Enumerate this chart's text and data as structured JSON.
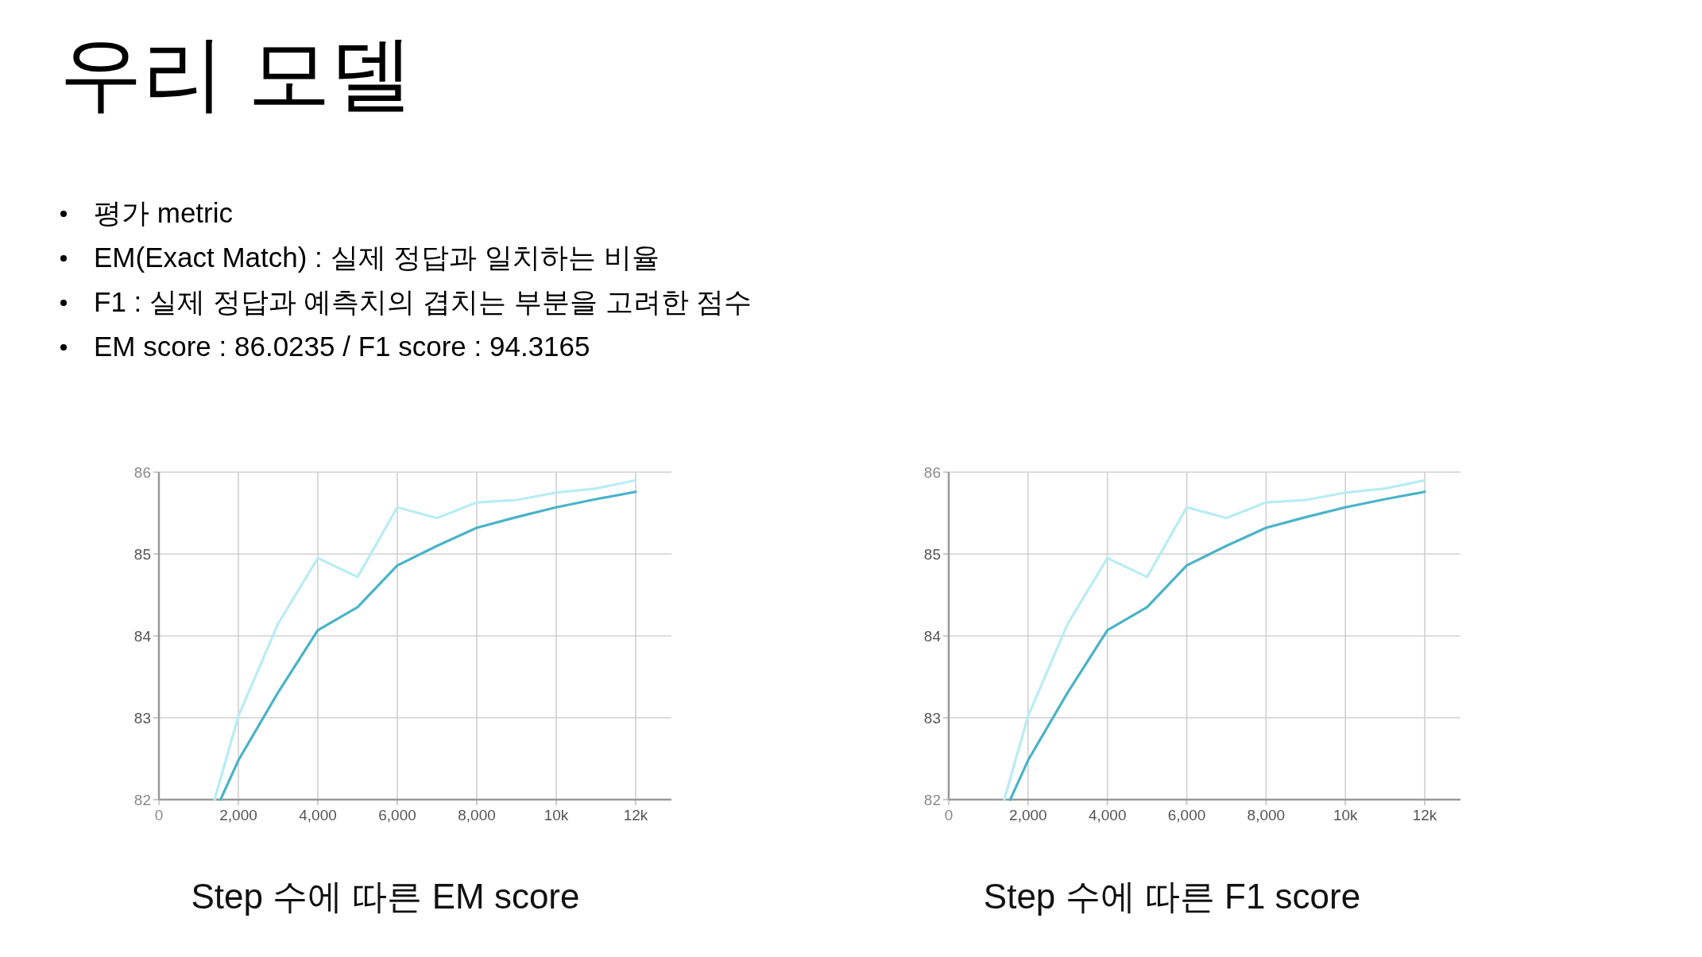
{
  "chart_data": [
    {
      "type": "line",
      "title": "Step 수에 따른 EM score",
      "annotations": [
        "우리 모델",
        "평가 metric",
        "EM(Exact Match) : 실제 정답과 일치하는 비율",
        "F1 : 실제 정답과 예측치의 겹치는 부분을 고려한 점수",
        "EM score : 86.0235 / F1 score : 94.3165"
      ],
      "series": [
        {
          "color": "#b8ecf5",
          "x": [
            1400,
            2000,
            3000,
            4000,
            5000,
            6000,
            7000,
            8000,
            9000,
            10000,
            11000,
            12000
          ],
          "values": [
            82.0,
            83.02,
            84.15,
            84.95,
            84.72,
            85.57,
            85.44,
            85.63,
            85.66,
            85.75,
            85.8,
            85.9
          ]
        },
        {
          "color": "#4ab3c8",
          "x": [
            1550,
            2000,
            3000,
            4000,
            5000,
            6000,
            7000,
            8000,
            9000,
            10000,
            11000,
            12000
          ],
          "values": [
            82.0,
            82.48,
            83.31,
            84.07,
            84.35,
            84.86,
            85.1,
            85.32,
            85.45,
            85.57,
            85.67,
            85.76
          ]
        }
      ],
      "xlim": [
        0,
        12900
      ],
      "ylim": [
        82,
        86
      ],
      "xticks": [
        0,
        {
          "value": 2000,
          "label": "2,000"
        },
        {
          "value": 4000,
          "label": "4,000"
        },
        {
          "value": 6000,
          "label": "6,000"
        },
        {
          "value": 8000,
          "label": "8,000"
        },
        {
          "value": 10000,
          "label": "10k"
        },
        {
          "value": 12000,
          "label": "12k"
        }
      ],
      "yticks": [
        82,
        83,
        84,
        85,
        86
      ],
      "grid": true
    },
    {
      "type": "line",
      "title": "Step 수에 따른 F1 score",
      "series": [
        {
          "color": "#b8ecf5",
          "x": [
            1400,
            2000,
            3000,
            4000,
            5000,
            6000,
            7000,
            8000,
            9000,
            10000,
            11000,
            12000
          ],
          "values": [
            82.0,
            83.02,
            84.15,
            84.95,
            84.72,
            85.57,
            85.44,
            85.63,
            85.66,
            85.75,
            85.8,
            85.9
          ]
        },
        {
          "color": "#4ab3c8",
          "x": [
            1550,
            2000,
            3000,
            4000,
            5000,
            6000,
            7000,
            8000,
            9000,
            10000,
            11000,
            12000
          ],
          "values": [
            82.0,
            82.48,
            83.31,
            84.07,
            84.35,
            84.86,
            85.1,
            85.32,
            85.45,
            85.57,
            85.67,
            85.76
          ]
        }
      ],
      "xlim": [
        0,
        12900
      ],
      "ylim": [
        82,
        86
      ],
      "xticks": [
        0,
        {
          "value": 2000,
          "label": "2,000"
        },
        {
          "value": 4000,
          "label": "4,000"
        },
        {
          "value": 6000,
          "label": "6,000"
        },
        {
          "value": 8000,
          "label": "8,000"
        },
        {
          "value": 10000,
          "label": "10k"
        },
        {
          "value": 12000,
          "label": "12k"
        }
      ],
      "yticks": [
        82,
        83,
        84,
        85,
        86
      ],
      "grid": true
    }
  ]
}
